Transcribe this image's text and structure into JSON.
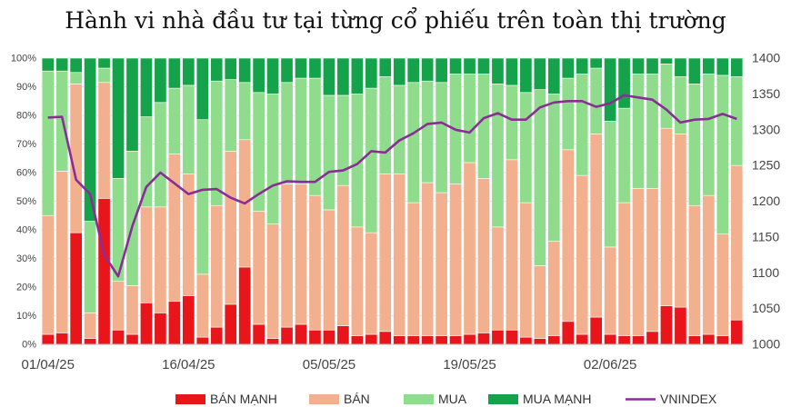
{
  "chart_data": {
    "type": "bar",
    "stacked": true,
    "title": "Hành vi nhà đầu tư tại từng cổ phiếu trên toàn thị trường",
    "colors": {
      "ban_manh": "#e8161b",
      "ban": "#f2b08f",
      "mua": "#8fdc8d",
      "mua_manh": "#14a24a",
      "vnindex": "#8a2d97"
    },
    "x_tick_labels": [
      "01/04/25",
      "16/04/25",
      "05/05/25",
      "19/05/25",
      "02/06/25"
    ],
    "x_tick_indices": [
      0,
      10,
      20,
      30,
      40
    ],
    "y_left": {
      "min": 0,
      "max": 100,
      "ticks": [
        "0%",
        "10%",
        "20%",
        "30%",
        "40%",
        "50%",
        "60%",
        "70%",
        "80%",
        "90%",
        "100%"
      ]
    },
    "y_right": {
      "min": 1000,
      "max": 1400,
      "ticks": [
        "1000",
        "1050",
        "1100",
        "1150",
        "1200",
        "1250",
        "1300",
        "1350",
        "1400"
      ]
    },
    "legend": [
      "BÁN MẠNH",
      "BÁN",
      "MUA",
      "MUA MẠNH",
      "VNINDEX"
    ],
    "series": [
      {
        "name": "BÁN MẠNH",
        "values": [
          3.5,
          4,
          39,
          2,
          51,
          5,
          3.5,
          14.5,
          11,
          15,
          17,
          2.5,
          6,
          14,
          27,
          7,
          2,
          6,
          7,
          5,
          5,
          6.5,
          3,
          3.5,
          4.5,
          3,
          3,
          3,
          3,
          3,
          3.5,
          4,
          5,
          5,
          2.5,
          2,
          3,
          8,
          3.5,
          9.5,
          3.5,
          3,
          3,
          4.5,
          13.5,
          13,
          3,
          3.5,
          3,
          8.5
        ]
      },
      {
        "name": "BÁN",
        "values": [
          41.5,
          56.5,
          52,
          9,
          40.5,
          17,
          17,
          33.5,
          37,
          51.5,
          42.5,
          22,
          42.5,
          53.5,
          44.5,
          39.5,
          40,
          50,
          49,
          47,
          42,
          49,
          38,
          35.5,
          55,
          56.5,
          46.5,
          53.5,
          50,
          53,
          60,
          54,
          36,
          59.5,
          47,
          25.5,
          33,
          60,
          55.5,
          64,
          30.5,
          46.5,
          51.5,
          50,
          62,
          60.5,
          45.5,
          48.5,
          35.5,
          54
        ]
      },
      {
        "name": "MUA",
        "values": [
          50.5,
          35,
          4,
          32,
          5,
          36,
          47,
          31.5,
          36.5,
          23,
          31,
          54,
          43.5,
          25,
          20,
          41.5,
          45.5,
          35.5,
          37,
          41,
          40,
          31.5,
          46.5,
          50.5,
          34,
          31,
          42,
          35.5,
          38.5,
          38.5,
          31,
          36.5,
          50,
          26,
          38.5,
          61.5,
          51.5,
          25,
          35.5,
          23,
          44,
          33,
          40,
          40,
          22.5,
          20,
          42.5,
          42.5,
          55.5,
          31
        ]
      },
      {
        "name": "MUA MẠNH",
        "values": [
          4.5,
          4.5,
          5,
          57,
          3.5,
          42,
          32.5,
          20.5,
          15.5,
          10.5,
          9.5,
          21.5,
          8,
          7.5,
          8.5,
          12,
          12.5,
          8.5,
          7,
          7,
          13,
          13,
          12.5,
          10.5,
          6.5,
          9.5,
          8.5,
          8,
          8.5,
          5.5,
          5.5,
          5.5,
          9,
          9.5,
          12,
          11,
          12.5,
          7,
          5.5,
          3.5,
          22,
          17.5,
          5.5,
          5.5,
          2,
          6.5,
          9,
          5.5,
          6,
          6.5
        ]
      },
      {
        "name": "VNINDEX",
        "values": [
          1317,
          1318,
          1230,
          1210,
          1125,
          1095,
          1165,
          1220,
          1240,
          1225,
          1210,
          1216,
          1217,
          1205,
          1197,
          1210,
          1222,
          1228,
          1227,
          1227,
          1241,
          1243,
          1252,
          1270,
          1268,
          1285,
          1295,
          1308,
          1310,
          1300,
          1296,
          1316,
          1323,
          1314,
          1314,
          1331,
          1338,
          1340,
          1340,
          1332,
          1337,
          1348,
          1345,
          1342,
          1328,
          1310,
          1314,
          1315,
          1322,
          1315
        ]
      }
    ]
  }
}
